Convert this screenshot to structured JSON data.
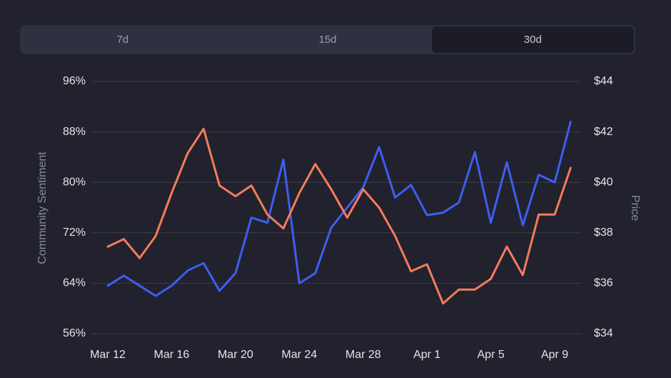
{
  "tabs": [
    "7d",
    "15d",
    "30d"
  ],
  "chart_data": {
    "type": "line",
    "categories": [
      "Mar 12",
      null,
      null,
      null,
      "Mar 16",
      null,
      null,
      null,
      "Mar 20",
      null,
      null,
      null,
      "Mar 24",
      null,
      null,
      null,
      "Mar 28",
      null,
      null,
      null,
      "Apr 1",
      null,
      null,
      null,
      "Apr 5",
      null,
      null,
      null,
      "Apr 9",
      null
    ],
    "series": [
      {
        "color": "#f47c5c",
        "values": [
          69.8,
          71,
          68,
          71.5,
          78.3,
          84.6,
          88.5,
          79.5,
          77.8,
          79.5,
          74.9,
          72.7,
          78.3,
          82.9,
          78.9,
          74.4,
          78.9,
          76,
          71.5,
          65.9,
          67,
          60.8,
          63,
          63,
          64.7,
          69.8,
          65.3,
          74.9,
          74.9,
          82.3
        ]
      },
      {
        "color": "#3d5ef0",
        "axis": "y2",
        "values": [
          35.9,
          36.3,
          35.9,
          35.5,
          35.9,
          36.5,
          36.8,
          35.7,
          36.4,
          38.6,
          38.4,
          40.9,
          36.0,
          36.4,
          38.2,
          39.0,
          39.8,
          41.4,
          39.4,
          39.9,
          38.7,
          38.8,
          39.2,
          41.2,
          38.4,
          40.8,
          38.3,
          40.3,
          40.0,
          42.4
        ]
      }
    ],
    "ylabel": "Community Sentiment",
    "y2label": "Price",
    "ylim": [
      56,
      96
    ],
    "yticks": [
      {
        "value": 56,
        "label": "56%"
      },
      {
        "value": 64,
        "label": "64%"
      },
      {
        "value": 72,
        "label": "72%"
      },
      {
        "value": 80,
        "label": "80%"
      },
      {
        "value": 88,
        "label": "88%"
      },
      {
        "value": 96,
        "label": "96%"
      }
    ],
    "y2lim": [
      34,
      44
    ],
    "y2ticks": [
      {
        "value": 34,
        "label": "$34"
      },
      {
        "value": 36,
        "label": "$36"
      },
      {
        "value": 38,
        "label": "$38"
      },
      {
        "value": 40,
        "label": "$40"
      },
      {
        "value": 42,
        "label": "$42"
      },
      {
        "value": 44,
        "label": "$44"
      }
    ],
    "grid": true
  }
}
